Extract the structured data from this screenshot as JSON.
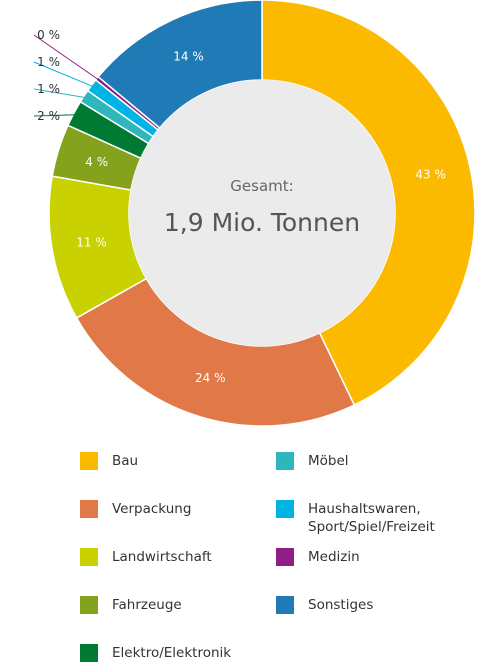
{
  "chart_data": {
    "type": "pie",
    "variant": "donut",
    "center_text": {
      "caption": "Gesamt:",
      "value": "1,9 Mio. Tonnen"
    },
    "categories": [
      "Bau",
      "Verpackung",
      "Landwirtschaft",
      "Fahrzeuge",
      "Elektro/Elektronik",
      "Möbel",
      "Haushaltswaren, Sport/Spiel/Freizeit",
      "Medizin",
      "Sonstiges"
    ],
    "values": [
      43,
      24,
      11,
      4,
      2,
      1,
      1,
      0,
      14
    ],
    "value_labels": [
      "43 %",
      "24 %",
      "11 %",
      "4 %",
      "2 %",
      "1 %",
      "1 %",
      "0 %",
      "14 %"
    ],
    "colors": [
      "#FBBA00",
      "#E07848",
      "#C9D200",
      "#84A21B",
      "#007A33",
      "#2FB6BC",
      "#00B3E5",
      "#8E1E84",
      "#1F7AB5"
    ],
    "legend_placement": "bottom",
    "legend": [
      {
        "label": "Bau",
        "color": "#FBBA00"
      },
      {
        "label": "Verpackung",
        "color": "#E07848"
      },
      {
        "label": "Landwirtschaft",
        "color": "#C9D200"
      },
      {
        "label": "Fahrzeuge",
        "color": "#84A21B"
      },
      {
        "label": "Elektro/Elektronik",
        "color": "#007A33"
      },
      {
        "label": "Möbel",
        "color": "#2FB6BC"
      },
      {
        "label": "Haushaltswaren,\nSport/Spiel/Freizeit",
        "color": "#00B3E5"
      },
      {
        "label": "Medizin",
        "color": "#8E1E84"
      },
      {
        "label": "Sonstiges",
        "color": "#1F7AB5"
      }
    ]
  }
}
